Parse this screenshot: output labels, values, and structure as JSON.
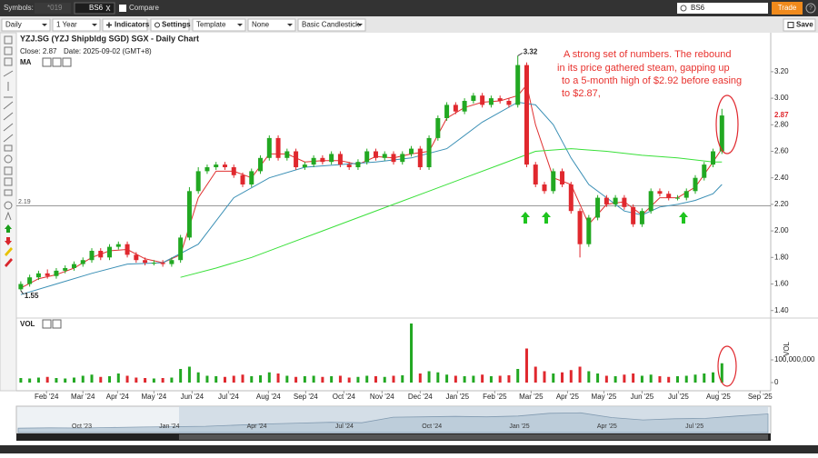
{
  "toolbar": {
    "symbols_label": "Symbols:",
    "tabs": [
      "*019",
      "BS6"
    ],
    "compare": "Compare",
    "search": "BS6",
    "trade": "Trade",
    "help": "?"
  },
  "controls": {
    "interval": "Daily",
    "range": "1 Year",
    "indicators": "Indicators",
    "settings": "Settings",
    "template": "Template",
    "overlay": "None",
    "style": "Basic Candlestick",
    "save": "Save"
  },
  "chart_data": {
    "type": "candlestick",
    "title": "YZJ.SG (YZJ Shipbldg SGD) SGX - Daily Chart",
    "close_label": "Close: 2.87",
    "date_label": "Date: 2025-09-02 (GMT+8)",
    "indicator_label": "MA",
    "annotation_lines": [
      "A strong set of numbers. The rebound",
      "in its price gathered steam, gapping up",
      "to a 5-month high of $2.92 before easing",
      "to $2.87,"
    ],
    "up_color": "#22a822",
    "down_color": "#e0282e",
    "open": [
      1.56,
      1.6,
      1.65,
      1.68,
      1.66,
      1.7,
      1.72,
      1.75,
      1.78,
      1.85,
      1.8,
      1.88,
      1.9,
      1.82,
      1.78,
      1.76,
      1.76,
      1.75,
      1.78,
      1.95,
      2.3,
      2.45,
      2.48,
      2.5,
      2.48,
      2.42,
      2.35,
      2.45,
      2.55,
      2.7,
      2.55,
      2.6,
      2.48,
      2.5,
      2.55,
      2.52,
      2.58,
      2.5,
      2.48,
      2.52,
      2.6,
      2.55,
      2.58,
      2.52,
      2.58,
      2.62,
      2.48,
      2.7,
      2.85,
      2.95,
      2.9,
      2.98,
      3.02,
      2.95,
      3.0,
      2.98,
      2.95,
      3.25,
      2.5,
      2.35,
      2.3,
      2.45,
      2.35,
      2.15,
      1.9,
      2.1,
      2.25,
      2.2,
      2.25,
      2.18,
      2.05,
      2.15,
      2.3,
      2.28,
      2.25,
      2.25,
      2.3,
      2.4,
      2.5,
      2.6
    ],
    "high": [
      1.62,
      1.67,
      1.7,
      1.71,
      1.72,
      1.74,
      1.77,
      1.8,
      1.87,
      1.87,
      1.9,
      1.92,
      1.92,
      1.84,
      1.8,
      1.78,
      1.78,
      1.8,
      1.97,
      2.33,
      2.48,
      2.5,
      2.52,
      2.52,
      2.5,
      2.44,
      2.47,
      2.57,
      2.72,
      2.72,
      2.62,
      2.62,
      2.52,
      2.57,
      2.57,
      2.6,
      2.6,
      2.52,
      2.54,
      2.62,
      2.62,
      2.6,
      2.6,
      2.6,
      2.64,
      2.64,
      2.72,
      2.87,
      2.97,
      2.97,
      3.0,
      3.04,
      3.04,
      3.02,
      3.02,
      3.0,
      3.32,
      3.27,
      2.52,
      2.37,
      2.47,
      2.47,
      2.37,
      2.17,
      2.12,
      2.27,
      2.27,
      2.27,
      2.27,
      2.2,
      2.17,
      2.32,
      2.32,
      2.3,
      2.27,
      2.32,
      2.42,
      2.52,
      2.62,
      2.92
    ],
    "low": [
      1.55,
      1.58,
      1.63,
      1.64,
      1.64,
      1.68,
      1.7,
      1.73,
      1.76,
      1.78,
      1.78,
      1.86,
      1.8,
      1.76,
      1.74,
      1.74,
      1.73,
      1.73,
      1.76,
      1.93,
      2.28,
      2.43,
      2.46,
      2.46,
      2.4,
      2.33,
      2.33,
      2.43,
      2.53,
      2.53,
      2.53,
      2.46,
      2.46,
      2.48,
      2.5,
      2.5,
      2.48,
      2.46,
      2.46,
      2.5,
      2.53,
      2.53,
      2.5,
      2.5,
      2.56,
      2.46,
      2.46,
      2.68,
      2.83,
      2.88,
      2.88,
      2.96,
      2.93,
      2.93,
      2.96,
      2.93,
      2.93,
      2.48,
      2.33,
      2.28,
      2.28,
      2.33,
      2.13,
      1.8,
      1.88,
      2.08,
      2.18,
      2.18,
      2.16,
      2.03,
      2.03,
      2.13,
      2.26,
      2.23,
      2.23,
      2.23,
      2.28,
      2.38,
      2.48,
      2.58
    ],
    "close": [
      1.6,
      1.65,
      1.68,
      1.66,
      1.7,
      1.72,
      1.75,
      1.78,
      1.85,
      1.8,
      1.88,
      1.9,
      1.82,
      1.78,
      1.76,
      1.76,
      1.75,
      1.78,
      1.95,
      2.3,
      2.45,
      2.48,
      2.5,
      2.48,
      2.42,
      2.35,
      2.45,
      2.55,
      2.7,
      2.55,
      2.6,
      2.48,
      2.5,
      2.55,
      2.52,
      2.58,
      2.5,
      2.48,
      2.52,
      2.6,
      2.55,
      2.58,
      2.52,
      2.58,
      2.62,
      2.48,
      2.7,
      2.85,
      2.95,
      2.9,
      2.98,
      3.02,
      2.95,
      3.0,
      2.98,
      2.95,
      3.25,
      2.5,
      2.35,
      2.3,
      2.45,
      2.35,
      2.15,
      1.9,
      2.1,
      2.25,
      2.2,
      2.25,
      2.18,
      2.05,
      2.15,
      2.3,
      2.28,
      2.25,
      2.25,
      2.3,
      2.4,
      2.5,
      2.6,
      2.87
    ],
    "volume": [
      20000000,
      18000000,
      22000000,
      25000000,
      20000000,
      18000000,
      22000000,
      30000000,
      35000000,
      25000000,
      28000000,
      40000000,
      30000000,
      22000000,
      20000000,
      18000000,
      20000000,
      22000000,
      60000000,
      70000000,
      45000000,
      30000000,
      28000000,
      25000000,
      30000000,
      35000000,
      28000000,
      32000000,
      45000000,
      40000000,
      30000000,
      25000000,
      28000000,
      30000000,
      25000000,
      28000000,
      30000000,
      22000000,
      25000000,
      30000000,
      28000000,
      25000000,
      30000000,
      32000000,
      260000000,
      40000000,
      50000000,
      45000000,
      35000000,
      30000000,
      28000000,
      30000000,
      35000000,
      28000000,
      30000000,
      32000000,
      60000000,
      150000000,
      70000000,
      50000000,
      40000000,
      45000000,
      55000000,
      70000000,
      50000000,
      40000000,
      30000000,
      28000000,
      35000000,
      40000000,
      30000000,
      35000000,
      28000000,
      25000000,
      28000000,
      30000000,
      35000000,
      40000000,
      45000000,
      85000000
    ],
    "moving_averages": [
      {
        "color": "#e03030",
        "x": [
          0,
          2,
          4,
          6,
          8,
          10,
          12,
          14,
          16,
          18,
          20,
          22,
          24,
          26,
          28,
          30,
          32,
          34,
          36,
          38,
          40,
          42,
          44,
          46,
          48,
          50,
          52,
          54,
          56,
          57,
          58,
          60,
          62,
          64,
          66,
          68,
          70,
          72,
          74,
          76,
          78,
          79
        ],
        "values": [
          1.57,
          1.64,
          1.67,
          1.72,
          1.8,
          1.85,
          1.86,
          1.79,
          1.76,
          1.82,
          2.25,
          2.45,
          2.45,
          2.4,
          2.58,
          2.58,
          2.52,
          2.53,
          2.53,
          2.5,
          2.56,
          2.55,
          2.58,
          2.6,
          2.85,
          2.93,
          2.97,
          2.98,
          3.02,
          3.1,
          2.8,
          2.4,
          2.35,
          2.05,
          2.2,
          2.22,
          2.12,
          2.25,
          2.25,
          2.33,
          2.52,
          2.62
        ]
      },
      {
        "color": "#3a8fb5",
        "x": [
          0,
          4,
          8,
          12,
          16,
          20,
          24,
          28,
          32,
          36,
          40,
          44,
          48,
          52,
          56,
          58,
          60,
          62,
          64,
          66,
          68,
          70,
          72,
          74,
          76,
          78,
          79
        ],
        "values": [
          1.52,
          1.6,
          1.68,
          1.75,
          1.76,
          1.9,
          2.25,
          2.4,
          2.48,
          2.5,
          2.52,
          2.55,
          2.62,
          2.82,
          2.97,
          2.95,
          2.8,
          2.55,
          2.35,
          2.25,
          2.15,
          2.12,
          2.18,
          2.2,
          2.23,
          2.28,
          2.35
        ]
      },
      {
        "color": "#39e039",
        "x": [
          18,
          22,
          26,
          30,
          34,
          38,
          42,
          46,
          50,
          54,
          58,
          62,
          66,
          70,
          74,
          78,
          79
        ],
        "values": [
          1.65,
          1.72,
          1.8,
          1.9,
          2.0,
          2.1,
          2.2,
          2.3,
          2.4,
          2.5,
          2.6,
          2.62,
          2.6,
          2.57,
          2.55,
          2.52,
          2.52
        ]
      }
    ],
    "high_marker": 3.32,
    "low_marker": 1.55,
    "horizontal_line": 2.19,
    "last_price": 2.87,
    "xlim": [
      -0.5,
      84.5
    ],
    "xticks": [
      {
        "value": 2.9,
        "label": "Feb '24"
      },
      {
        "value": 7.0,
        "label": "Mar '24"
      },
      {
        "value": 10.9,
        "label": "Apr '24"
      },
      {
        "value": 15.0,
        "label": "May '24"
      },
      {
        "value": 19.3,
        "label": "Jun '24"
      },
      {
        "value": 23.4,
        "label": "Jul '24"
      },
      {
        "value": 27.9,
        "label": "Aug '24"
      },
      {
        "value": 32.1,
        "label": "Sep '24"
      },
      {
        "value": 36.4,
        "label": "Oct '24"
      },
      {
        "value": 40.7,
        "label": "Nov '24"
      },
      {
        "value": 45.0,
        "label": "Dec '24"
      },
      {
        "value": 49.2,
        "label": "Jan '25"
      },
      {
        "value": 53.4,
        "label": "Feb '25"
      },
      {
        "value": 57.5,
        "label": "Mar '25"
      },
      {
        "value": 61.6,
        "label": "Apr '25"
      },
      {
        "value": 65.7,
        "label": "May '25"
      },
      {
        "value": 70.0,
        "label": "Jun '25"
      },
      {
        "value": 74.1,
        "label": "Jul '25"
      },
      {
        "value": 78.6,
        "label": "Aug '25"
      },
      {
        "value": 83.3,
        "label": "Sep '25"
      }
    ],
    "ylim": [
      1.35,
      3.35
    ],
    "yticks": [
      {
        "value": 1.4,
        "label": "1.40"
      },
      {
        "value": 1.6,
        "label": "1.60"
      },
      {
        "value": 1.8,
        "label": "1.80"
      },
      {
        "value": 2.0,
        "label": "2.00"
      },
      {
        "value": 2.2,
        "label": "2.20"
      },
      {
        "value": 2.4,
        "label": "2.40"
      },
      {
        "value": 2.6,
        "label": "2.60"
      },
      {
        "value": 2.8,
        "label": "2.80"
      },
      {
        "value": 3.0,
        "label": "3.00"
      },
      {
        "value": 3.2,
        "label": "3.20"
      }
    ],
    "volume_label": "VOL",
    "volume_axis_title": "VOL",
    "volume_ylim": [
      0,
      280000000
    ],
    "volume_yticks": [
      0,
      {
        "value": 100000000,
        "label": "100,000,000"
      }
    ],
    "navigator": {
      "labels": [
        "Oct '23",
        "Jan '24",
        "Apr '24",
        "Jul '24",
        "Oct '24",
        "Jan '25",
        "Apr '25",
        "Jul '25"
      ],
      "values": [
        1.05,
        1.1,
        1.08,
        1.15,
        1.2,
        1.25,
        1.3,
        1.45,
        1.6,
        1.7,
        1.8,
        1.75,
        2.45,
        2.5,
        2.55,
        2.5,
        2.6,
        2.95,
        3.0,
        2.4,
        2.1,
        2.25,
        2.3,
        2.6,
        2.87
      ],
      "ylim": [
        0.5,
        3.5
      ]
    }
  }
}
